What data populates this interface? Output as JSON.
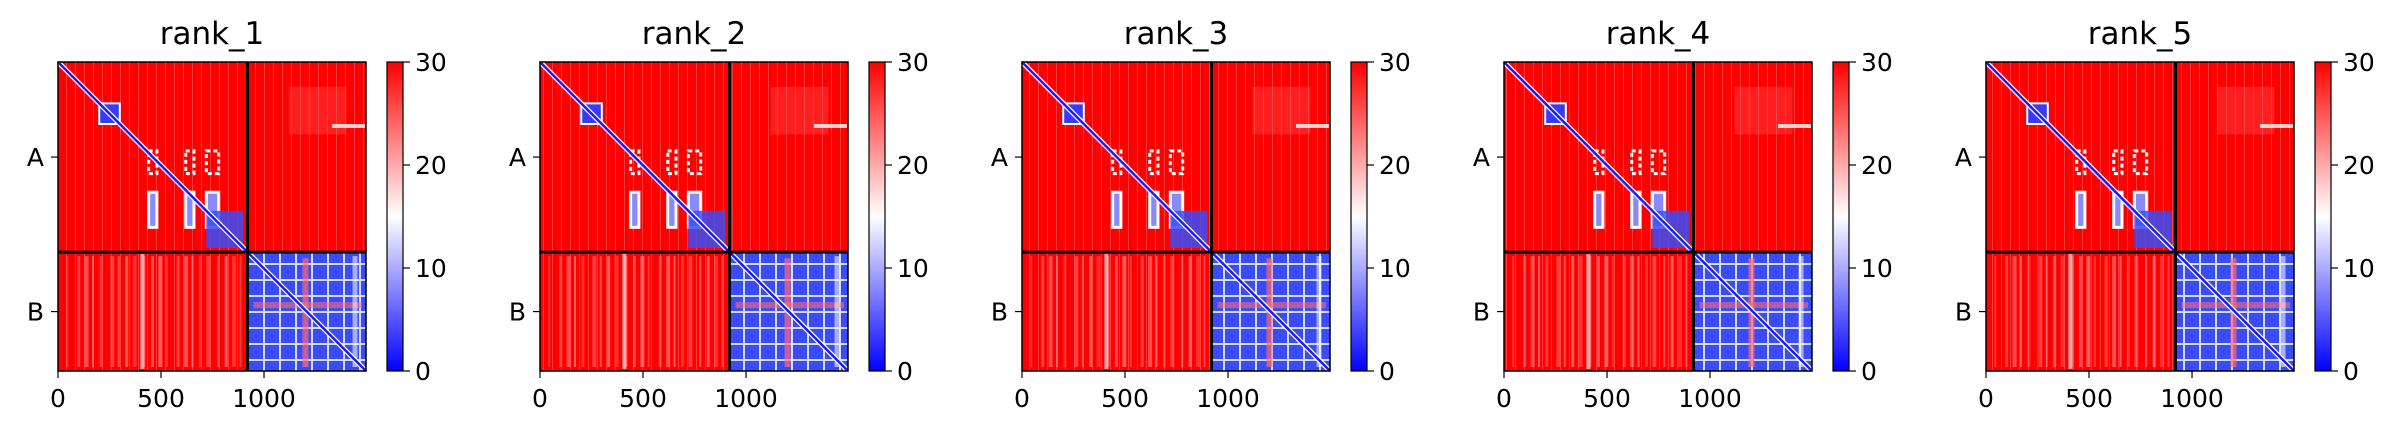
{
  "chart_data": [
    {
      "type": "heatmap",
      "title": "rank_1",
      "x_ticks": [
        0,
        500,
        1000
      ],
      "xlim": [
        0,
        1495
      ],
      "y_ticks": [
        "A",
        "B"
      ],
      "chain_boundary": 920,
      "colorbar": {
        "ticks": [
          0,
          10,
          20,
          30
        ],
        "range": [
          0,
          30
        ],
        "colors": [
          "#0000ff",
          "#ffffff",
          "#ff0000"
        ]
      },
      "blocks": {
        "A-A": "mostly red with blue diagonal and blue sub-blocks",
        "A-B": "red",
        "B-A": "red",
        "B-B": "mostly blue with white/red banding"
      }
    },
    {
      "type": "heatmap",
      "title": "rank_2",
      "x_ticks": [
        0,
        500,
        1000
      ],
      "xlim": [
        0,
        1495
      ],
      "y_ticks": [
        "A",
        "B"
      ],
      "chain_boundary": 920,
      "colorbar": {
        "ticks": [
          0,
          10,
          20,
          30
        ],
        "range": [
          0,
          30
        ],
        "colors": [
          "#0000ff",
          "#ffffff",
          "#ff0000"
        ]
      },
      "blocks": {
        "A-A": "mostly red with blue diagonal and blue sub-blocks",
        "A-B": "red",
        "B-A": "red",
        "B-B": "mostly blue with white/red banding"
      }
    },
    {
      "type": "heatmap",
      "title": "rank_3",
      "x_ticks": [
        0,
        500,
        1000
      ],
      "xlim": [
        0,
        1495
      ],
      "y_ticks": [
        "A",
        "B"
      ],
      "chain_boundary": 920,
      "colorbar": {
        "ticks": [
          0,
          10,
          20,
          30
        ],
        "range": [
          0,
          30
        ],
        "colors": [
          "#0000ff",
          "#ffffff",
          "#ff0000"
        ]
      },
      "blocks": {
        "A-A": "mostly red with blue diagonal and blue sub-blocks",
        "A-B": "red",
        "B-A": "red",
        "B-B": "mostly blue with white/red banding"
      }
    },
    {
      "type": "heatmap",
      "title": "rank_4",
      "x_ticks": [
        0,
        500,
        1000
      ],
      "xlim": [
        0,
        1495
      ],
      "y_ticks": [
        "A",
        "B"
      ],
      "chain_boundary": 920,
      "colorbar": {
        "ticks": [
          0,
          10,
          20,
          30
        ],
        "range": [
          0,
          30
        ],
        "colors": [
          "#0000ff",
          "#ffffff",
          "#ff0000"
        ]
      },
      "blocks": {
        "A-A": "mostly red with blue diagonal and blue sub-blocks",
        "A-B": "red",
        "B-A": "red",
        "B-B": "mostly blue with white/red banding"
      }
    },
    {
      "type": "heatmap",
      "title": "rank_5",
      "x_ticks": [
        0,
        500,
        1000
      ],
      "xlim": [
        0,
        1495
      ],
      "y_ticks": [
        "A",
        "B"
      ],
      "chain_boundary": 920,
      "colorbar": {
        "ticks": [
          0,
          10,
          20,
          30
        ],
        "range": [
          0,
          30
        ],
        "colors": [
          "#0000ff",
          "#ffffff",
          "#ff0000"
        ]
      },
      "blocks": {
        "A-A": "mostly red with blue diagonal and blue sub-blocks",
        "A-B": "red",
        "B-A": "red",
        "B-B": "mostly blue with white/red banding"
      }
    }
  ]
}
